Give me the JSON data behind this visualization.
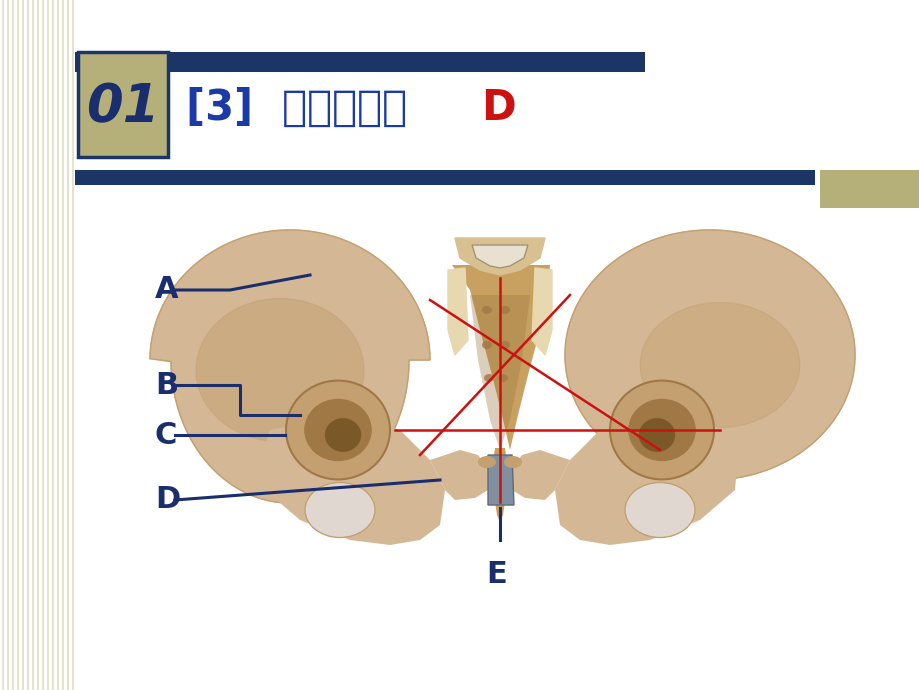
{
  "bg_color": "#ffffff",
  "stripe_color": "#c8c8a0",
  "navy": "#1a3566",
  "tan": "#b5b07a",
  "title_number": "01",
  "title_number_color": "#1a2e6e",
  "title_blue": "[3]  耽骨结节？",
  "title_blue_color": "#1a3aa8",
  "title_red": "D",
  "title_red_color": "#cc1111",
  "label_color": "#1a2e6e",
  "bone_light": "#d4b896",
  "bone_mid": "#c4a070",
  "bone_dark": "#a07845",
  "bone_shadow": "#8a6030",
  "sacrum_color": "#c8a060",
  "gray_joint": "#8090a0",
  "red_line": "#cc1111",
  "figsize": [
    9.2,
    6.9
  ],
  "dpi": 100
}
